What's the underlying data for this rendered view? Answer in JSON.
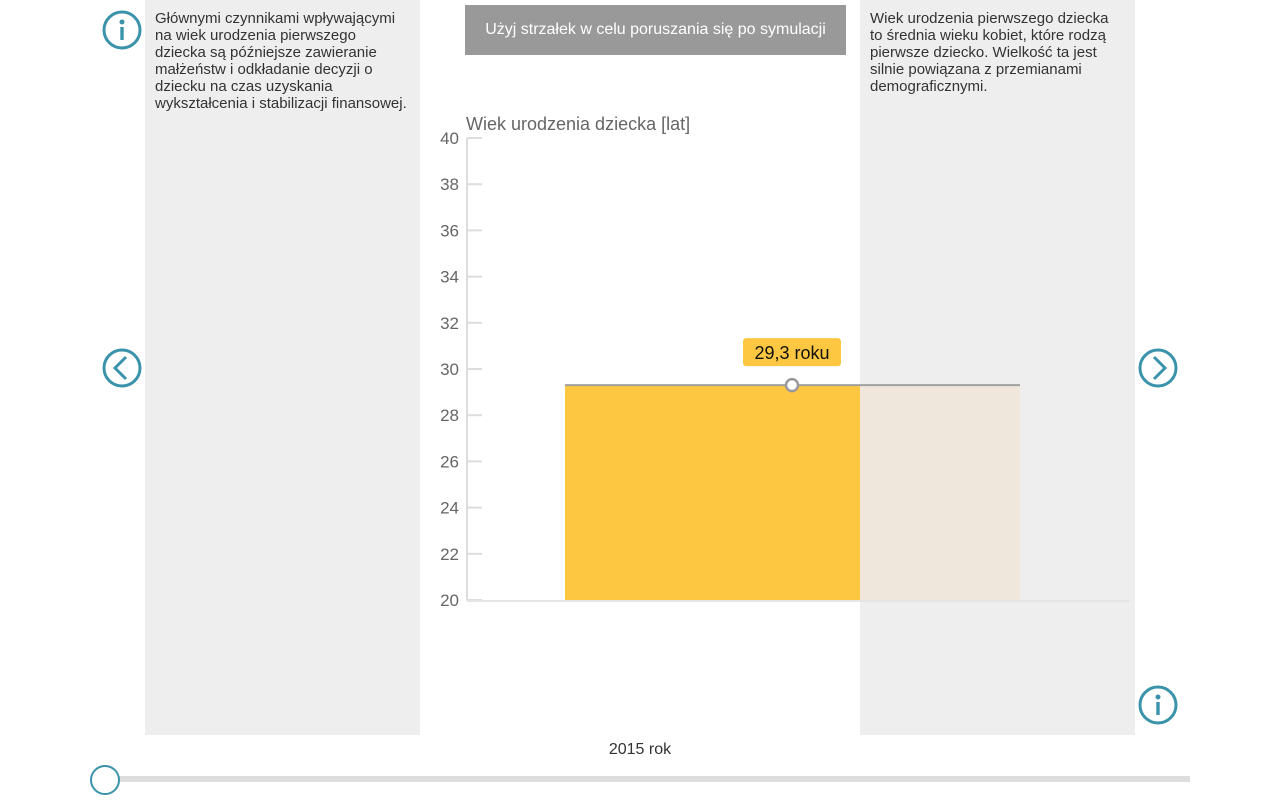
{
  "left_info": {
    "text": "Głównymi czynnikami wpływającymi na wiek urodzenia pierwszego dziecka są późniejsze zawieranie małżeństw i odkładanie decyzji o dziecku na czas uzyskania wykształcenia i stabilizacji finansowej."
  },
  "right_info": {
    "text": "Wiek urodzenia pierwszego dziecka to średnia wieku kobiet, które rodzą pierwsze dziecko. Wielkość ta jest silnie powiązana z przemianami demograficznymi."
  },
  "hint": "Użyj strzałek w celu poruszania się po symulacji",
  "year_label": "2015 rok",
  "slider": {
    "position": 0
  },
  "colors": {
    "accent": "#3a93aa",
    "bar": "#fdc741",
    "bar_ghost": "#efe7dc"
  },
  "chart_data": {
    "type": "bar",
    "title": "Wiek urodzenia dziecka [lat]",
    "ylim": [
      20,
      40
    ],
    "yticks": [
      "20",
      "22",
      "24",
      "26",
      "28",
      "30",
      "32",
      "34",
      "36",
      "38",
      "40"
    ],
    "categories": [
      "2015"
    ],
    "values": [
      29.3
    ],
    "value_label": "29,3 roku"
  }
}
